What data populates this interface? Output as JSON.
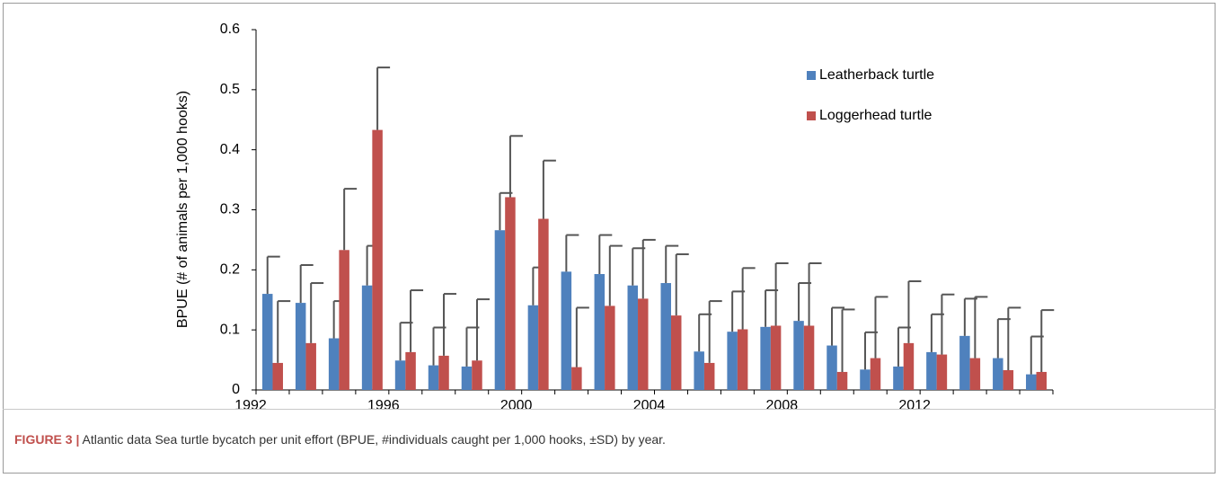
{
  "chart_data": {
    "type": "bar",
    "y_label": "BPUE (# of animals per 1,000 hooks)",
    "categories": [
      "1992",
      null,
      null,
      null,
      "1996",
      null,
      null,
      null,
      "2000",
      null,
      null,
      null,
      "2004",
      null,
      null,
      null,
      "2008",
      null,
      null,
      null,
      "2012",
      null,
      null,
      null
    ],
    "series": [
      {
        "name": "Leatherback turtle",
        "color": "#4f81bd",
        "values": [
          0.16,
          0.145,
          0.086,
          0.174,
          0.049,
          0.041,
          0.039,
          0.266,
          0.141,
          0.197,
          0.193,
          0.174,
          0.178,
          0.064,
          0.097,
          0.105,
          0.115,
          0.074,
          0.034,
          0.039,
          0.063,
          0.09,
          0.053,
          0.026
        ],
        "errors": [
          0.062,
          0.063,
          0.062,
          0.066,
          0.063,
          0.063,
          0.065,
          0.062,
          0.063,
          0.061,
          0.065,
          0.062,
          0.062,
          0.062,
          0.067,
          0.061,
          0.063,
          0.063,
          0.062,
          0.065,
          0.063,
          0.062,
          0.065,
          0.063
        ]
      },
      {
        "name": "Loggerhead turtle",
        "color": "#c0504d",
        "values": [
          0.045,
          0.078,
          0.233,
          0.433,
          0.063,
          0.057,
          0.049,
          0.321,
          0.285,
          0.038,
          0.14,
          0.152,
          0.124,
          0.045,
          0.101,
          0.107,
          0.107,
          0.03,
          0.053,
          0.078,
          0.059,
          0.053,
          0.033,
          0.03
        ],
        "errors": [
          0.103,
          0.1,
          0.102,
          0.104,
          0.103,
          0.103,
          0.102,
          0.102,
          0.097,
          0.099,
          0.1,
          0.098,
          0.102,
          0.103,
          0.102,
          0.104,
          0.104,
          0.104,
          0.102,
          0.103,
          0.1,
          0.102,
          0.104,
          0.103
        ]
      }
    ],
    "ylim": [
      0,
      0.6
    ],
    "yticks": [
      0,
      0.1,
      0.2,
      0.3,
      0.4,
      0.5,
      0.6
    ],
    "error_color": "#555555",
    "legend": "upper-right"
  },
  "caption": {
    "label": "FIGURE 3 |",
    "text": "Atlantic data Sea turtle bycatch per unit effort (BPUE, #individuals caught per 1,000 hooks, ±SD) by year."
  }
}
